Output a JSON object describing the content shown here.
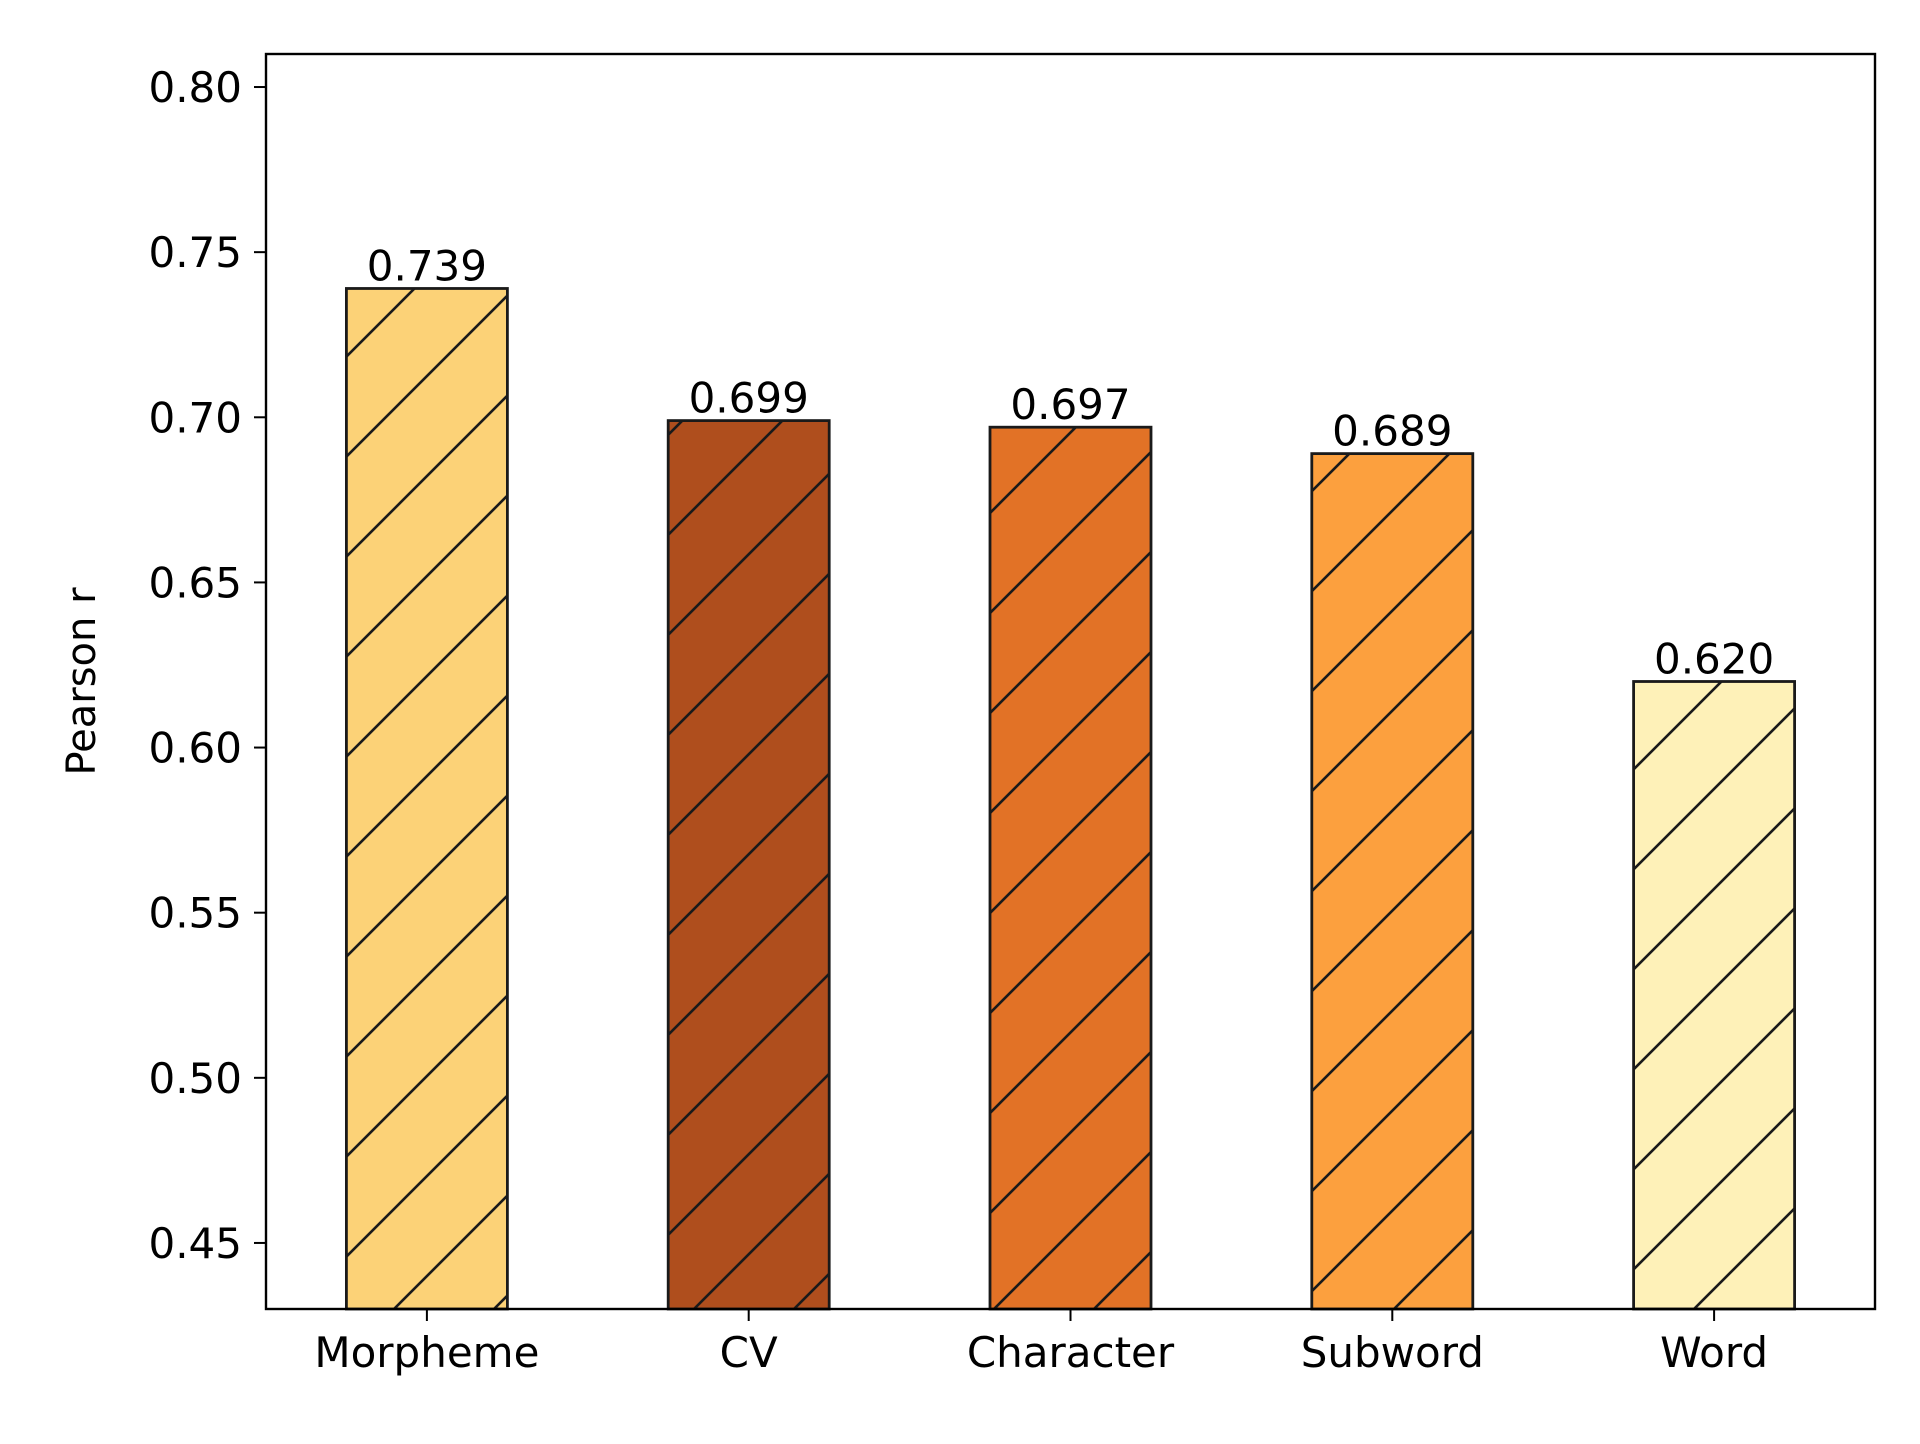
{
  "chart_data": {
    "type": "bar",
    "title": "",
    "xlabel": "",
    "ylabel": "Pearson r",
    "categories": [
      "Morpheme",
      "CV",
      "Character",
      "Subword",
      "Word"
    ],
    "values": [
      0.739,
      0.699,
      0.697,
      0.689,
      0.62
    ],
    "value_labels": [
      "0.739",
      "0.699",
      "0.697",
      "0.689",
      "0.620"
    ],
    "bar_colors": [
      "#FCD277",
      "#AF4E1D",
      "#E27226",
      "#FCA03E",
      "#FEF1B8"
    ],
    "edge_color": "#1a1a1a",
    "hatch": "/",
    "ylim": [
      0.43,
      0.81
    ],
    "yticks": [
      0.45,
      0.5,
      0.55,
      0.6,
      0.65,
      0.7,
      0.75,
      0.8
    ],
    "ytick_labels": [
      "0.45",
      "0.50",
      "0.55",
      "0.60",
      "0.65",
      "0.70",
      "0.75",
      "0.80"
    ],
    "grid": false,
    "legend": "none"
  }
}
